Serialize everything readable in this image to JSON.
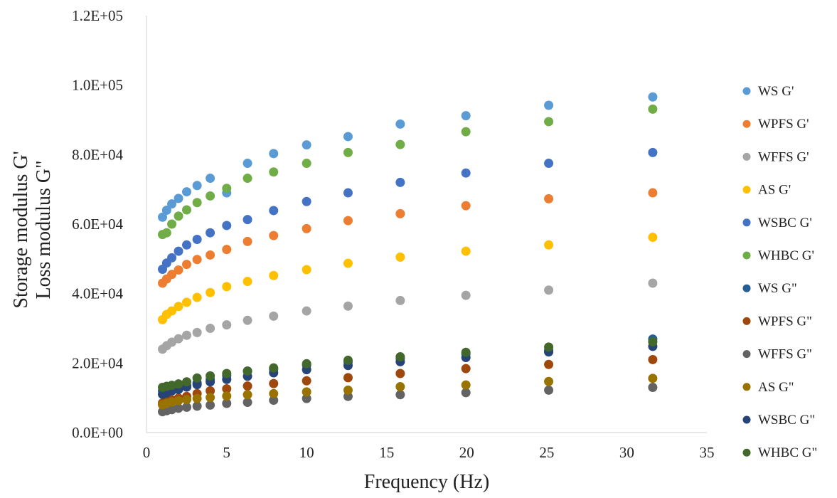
{
  "chart_data": {
    "type": "scatter",
    "title": "",
    "xlabel": "Frequency (Hz)",
    "ylabel_lines": [
      "Storage modulus G'",
      "Loss modulus G\""
    ],
    "xlim": [
      0,
      35
    ],
    "ylim": [
      0,
      120000
    ],
    "x_ticks": [
      0,
      5,
      10,
      15,
      20,
      25,
      30,
      35
    ],
    "y_ticks": [
      0,
      20000,
      40000,
      60000,
      80000,
      100000,
      120000
    ],
    "x_tick_labels": [
      "0",
      "5",
      "10",
      "15",
      "20",
      "25",
      "30",
      "35"
    ],
    "y_tick_labels": [
      "0.0E+00",
      "2.0E+04",
      "4.0E+04",
      "6.0E+04",
      "8.0E+04",
      "1.0E+05",
      "1.2E+05"
    ],
    "grid": false,
    "legend_position": "right",
    "x": [
      1.0,
      1.26,
      1.58,
      2.0,
      2.51,
      3.16,
      3.98,
      5.01,
      6.31,
      7.94,
      10.0,
      12.59,
      15.85,
      19.95,
      25.12,
      31.62
    ],
    "series": [
      {
        "name": "WS G'",
        "color": "#5B9BD5",
        "values": [
          62000,
          64000,
          65800,
          67400,
          69300,
          71100,
          73200,
          69000,
          77500,
          80300,
          82800,
          85200,
          88800,
          91200,
          94200,
          96600
        ]
      },
      {
        "name": "WPFS G'",
        "color": "#ED7D31",
        "values": [
          43000,
          44200,
          45500,
          46800,
          48400,
          49800,
          51100,
          52700,
          55000,
          56700,
          58700,
          61000,
          63000,
          65300,
          67300,
          69000
        ]
      },
      {
        "name": "WFFS G'",
        "color": "#A5A5A5",
        "values": [
          24000,
          25000,
          26000,
          27000,
          28000,
          28800,
          30000,
          31000,
          32300,
          33500,
          35000,
          36400,
          38000,
          39500,
          41000,
          43000
        ]
      },
      {
        "name": "AS G'",
        "color": "#FFC000",
        "values": [
          32500,
          34000,
          35000,
          36300,
          37500,
          38900,
          40300,
          42000,
          43500,
          45200,
          46900,
          48700,
          50500,
          52200,
          54000,
          56200
        ]
      },
      {
        "name": "WSBC G'",
        "color": "#4472C4",
        "values": [
          47000,
          48800,
          50300,
          52200,
          54000,
          55600,
          57500,
          59600,
          61300,
          63900,
          66500,
          69000,
          72000,
          74700,
          77500,
          80600
        ]
      },
      {
        "name": "WHBC G'",
        "color": "#70AD47",
        "values": [
          57000,
          57500,
          60000,
          62300,
          64100,
          66200,
          68100,
          70300,
          73200,
          75000,
          77500,
          80600,
          82900,
          86600,
          89500,
          93100
        ]
      },
      {
        "name": "WS G\"",
        "color": "#255E91",
        "values": [
          12000,
          12300,
          12700,
          13200,
          13600,
          14300,
          15300,
          16400,
          17700,
          18200,
          19400,
          20300,
          21400,
          22600,
          23700,
          26900
        ]
      },
      {
        "name": "WPFS G\"",
        "color": "#9E480E",
        "values": [
          8500,
          9000,
          9400,
          9900,
          10400,
          11200,
          12000,
          12600,
          13400,
          14100,
          14900,
          15800,
          17000,
          18400,
          19600,
          21000
        ]
      },
      {
        "name": "WFFS G\"",
        "color": "#636363",
        "values": [
          6000,
          6300,
          6600,
          7000,
          7300,
          7600,
          7900,
          8400,
          8700,
          9300,
          9800,
          10400,
          10900,
          11500,
          12200,
          13000
        ]
      },
      {
        "name": "AS G\"",
        "color": "#997300",
        "values": [
          8000,
          8400,
          8800,
          9200,
          9500,
          9800,
          10100,
          10500,
          10900,
          11200,
          11700,
          12200,
          13200,
          13700,
          14700,
          15600
        ]
      },
      {
        "name": "WSBC G\"",
        "color": "#264478",
        "values": [
          11000,
          11400,
          12000,
          12400,
          13100,
          13800,
          14600,
          15300,
          16200,
          17200,
          18100,
          19300,
          20400,
          21600,
          23200,
          24800
        ]
      },
      {
        "name": "WHBC G\"",
        "color": "#43682B",
        "values": [
          13000,
          13300,
          13600,
          14000,
          14600,
          15700,
          16300,
          17000,
          17700,
          18600,
          19800,
          20800,
          21800,
          23100,
          24600,
          26100
        ]
      }
    ]
  }
}
